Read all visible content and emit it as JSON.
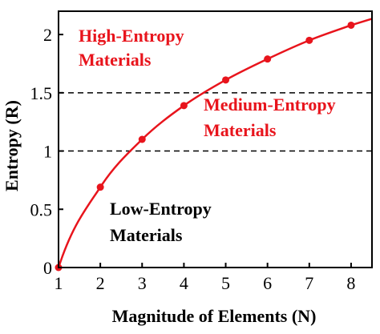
{
  "chart_data": {
    "type": "line",
    "xlabel": "Magnitude of Elements (N)",
    "ylabel": "Entropy (R)",
    "xlim": [
      1,
      8.5
    ],
    "ylim": [
      0,
      2.2
    ],
    "x_ticks": [
      "1",
      "2",
      "3",
      "4",
      "5",
      "6",
      "7",
      "8"
    ],
    "y_ticks": [
      "0",
      "0.5",
      "1",
      "1.5",
      "2"
    ],
    "series": [
      {
        "color": "#e8141c",
        "x": [
          1,
          2,
          3,
          4,
          5,
          6,
          7,
          8
        ],
        "y": [
          0,
          0.69,
          1.1,
          1.39,
          1.61,
          1.79,
          1.95,
          2.08
        ]
      }
    ],
    "reference_lines": [
      1,
      1.5
    ],
    "annotations": [
      {
        "lines": [
          "High-Entropy",
          "Materials"
        ],
        "color": "#e8141c"
      },
      {
        "lines": [
          "Medium-Entropy",
          "Materials"
        ],
        "color": "#e8141c"
      },
      {
        "lines": [
          "Low-Entropy",
          "Materials"
        ],
        "color": "#000000"
      }
    ],
    "grid": false
  }
}
